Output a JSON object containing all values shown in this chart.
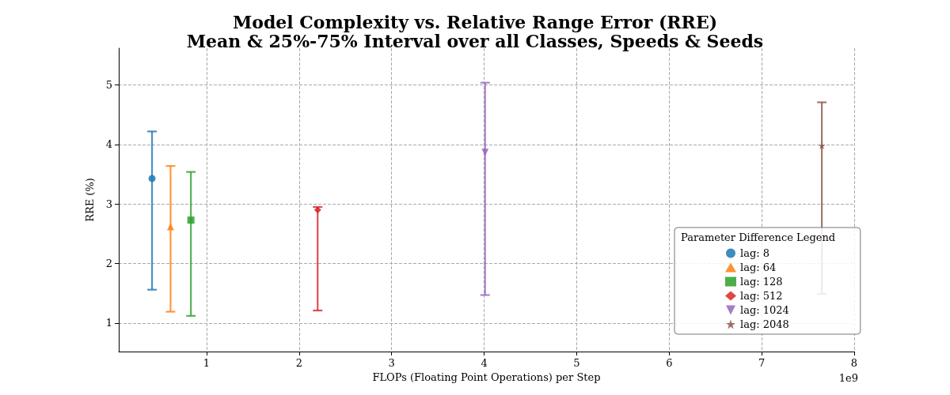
{
  "chart_data": {
    "type": "scatter",
    "title": "Model Complexity vs. Relative Range Error (RRE)",
    "subtitle": "Mean & 25%-75% Interval over all Classes, Speeds & Seeds",
    "xlabel": "FLOPs (Floating Point Operations) per Step",
    "ylabel": "RRE (%)",
    "legend_title": "Parameter Difference Legend",
    "annotations": [
      "1e9"
    ],
    "series": [
      {
        "name": "lag: 8",
        "color": "#1f77b4",
        "marker": "circle",
        "x": [
          0.41
        ],
        "values": [
          3.43
        ],
        "errors": [
          [
            1.56,
            4.22
          ]
        ]
      },
      {
        "name": "lag: 64",
        "color": "#ff7f0e",
        "marker": "triangle",
        "x": [
          0.61
        ],
        "values": [
          2.62
        ],
        "errors": [
          [
            1.19,
            3.64
          ]
        ]
      },
      {
        "name": "lag: 128",
        "color": "#2ca02c",
        "marker": "square",
        "x": [
          0.83
        ],
        "values": [
          2.73
        ],
        "errors": [
          [
            1.12,
            3.54
          ]
        ]
      },
      {
        "name": "lag: 512",
        "color": "#d62728",
        "marker": "diamond",
        "x": [
          2.2
        ],
        "values": [
          2.9
        ],
        "errors": [
          [
            1.21,
            2.95
          ]
        ]
      },
      {
        "name": "lag: 1024",
        "color": "#9467bd",
        "marker": "triangle-down",
        "x": [
          4.01
        ],
        "values": [
          3.87
        ],
        "errors": [
          [
            1.47,
            5.04
          ]
        ]
      },
      {
        "name": "lag: 2048",
        "color": "#8c564b",
        "marker": "star",
        "x": [
          7.65
        ],
        "values": [
          3.98
        ],
        "errors": [
          [
            1.49,
            4.71
          ]
        ]
      }
    ],
    "xlim": [
      0.05,
      8.0
    ],
    "xticks": [
      1,
      2,
      3,
      4,
      5,
      6,
      7,
      8
    ],
    "ylim": [
      0.52,
      5.62
    ],
    "yticks": [
      1,
      2,
      3,
      4,
      5
    ],
    "grid": true,
    "legend": "bottom right"
  }
}
